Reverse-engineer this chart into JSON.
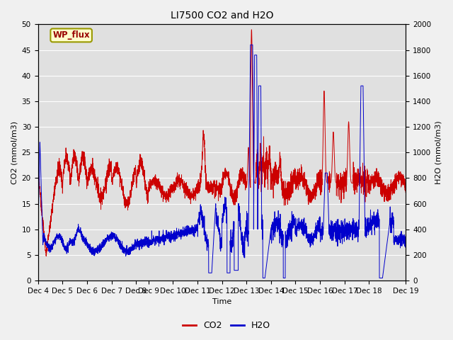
{
  "title": "LI7500 CO2 and H2O",
  "xlabel": "Time",
  "ylabel_left": "CO2 (mmol/m3)",
  "ylabel_right": "H2O (mmol/m3)",
  "xlim": [
    0,
    360
  ],
  "ylim_left": [
    0,
    50
  ],
  "ylim_right": [
    0,
    2000
  ],
  "x_tick_labels": [
    "Dec 4",
    "Dec 5",
    "Dec 6",
    "Dec 7",
    "Dec 8",
    "Dec 9",
    "Dec 10",
    "Dec 11",
    "Dec 12",
    "Dec 13",
    "Dec 14",
    "Dec 15",
    "Dec 16",
    "Dec 17",
    "Dec 18",
    "Dec 19"
  ],
  "x_tick_positions": [
    0,
    24,
    48,
    72,
    96,
    108,
    132,
    156,
    180,
    204,
    228,
    252,
    276,
    300,
    324,
    360
  ],
  "watermark_text": "WP_flux",
  "co2_color": "#cc0000",
  "h2o_color": "#0000cc",
  "fig_bg_color": "#f0f0f0",
  "plot_bg_color": "#e0e0e0",
  "legend_co2": "CO2",
  "legend_h2o": "H2O",
  "n_points": 3600
}
